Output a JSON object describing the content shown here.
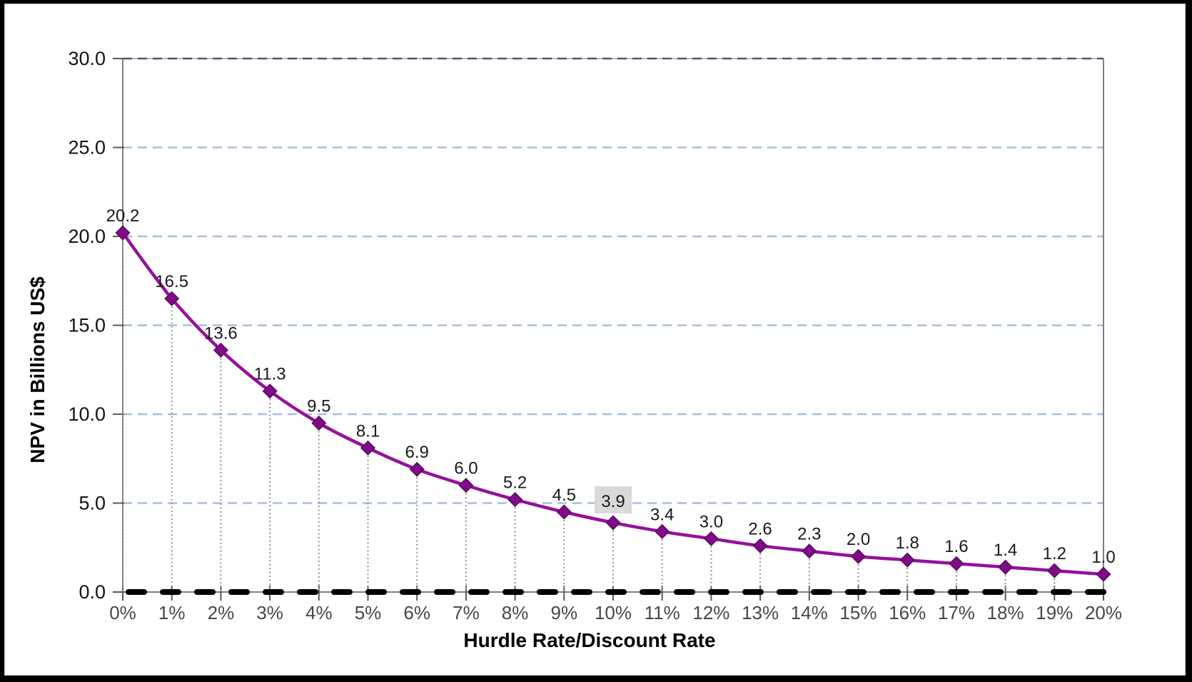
{
  "chart_data": {
    "type": "line",
    "title": "",
    "xlabel": "Hurdle Rate/Discount Rate",
    "ylabel": "NPV in Billions US$",
    "categories": [
      "0%",
      "1%",
      "2%",
      "3%",
      "4%",
      "5%",
      "6%",
      "7%",
      "8%",
      "9%",
      "10%",
      "11%",
      "12%",
      "13%",
      "14%",
      "15%",
      "16%",
      "17%",
      "18%",
      "19%",
      "20%"
    ],
    "values": [
      20.2,
      16.5,
      13.6,
      11.3,
      9.5,
      8.1,
      6.9,
      6.0,
      5.2,
      4.5,
      3.9,
      3.4,
      3.0,
      2.6,
      2.3,
      2.0,
      1.8,
      1.6,
      1.4,
      1.2,
      1.0
    ],
    "data_labels": [
      "20.2",
      "16.5",
      "13.6",
      "11.3",
      "9.5",
      "8.1",
      "6.9",
      "6.0",
      "5.2",
      "4.5",
      "3.9",
      "3.4",
      "3.0",
      "2.6",
      "2.3",
      "2.0",
      "1.8",
      "1.6",
      "1.4",
      "1.2",
      "1.0"
    ],
    "highlighted_label_index": 10,
    "y_ticks": [
      "0.0",
      "5.0",
      "10.0",
      "15.0",
      "20.0",
      "25.0",
      "30.0"
    ],
    "ylim": [
      0,
      30
    ],
    "grid": "horizontal dashed gridlines at 5-unit intervals, top boundary dark dashed",
    "legend": "none",
    "zero_baseline": "thick black dashed line at y=0",
    "drop_lines": "dotted vertical line from each marker to x-axis",
    "marker": "diamond",
    "colors": {
      "line": "#96109B",
      "marker_fill": "#7E0D86",
      "marker_stroke": "#5C0A63",
      "gridline": "#A6BDE4",
      "top_gridline_dash": "#4B5770",
      "top_gridline_base": "#9FA4AD",
      "axis": "#7F7F7F",
      "tick": "#595959",
      "drop_line": "#8F8F8F",
      "zero_line": "#000000",
      "x_tick_label": "#474747",
      "y_tick_label": "#141414",
      "data_label": "#1A1A1A",
      "highlight_bg": "#D9D9D9",
      "frame": "#000000",
      "background": "#FFFFFF"
    }
  }
}
